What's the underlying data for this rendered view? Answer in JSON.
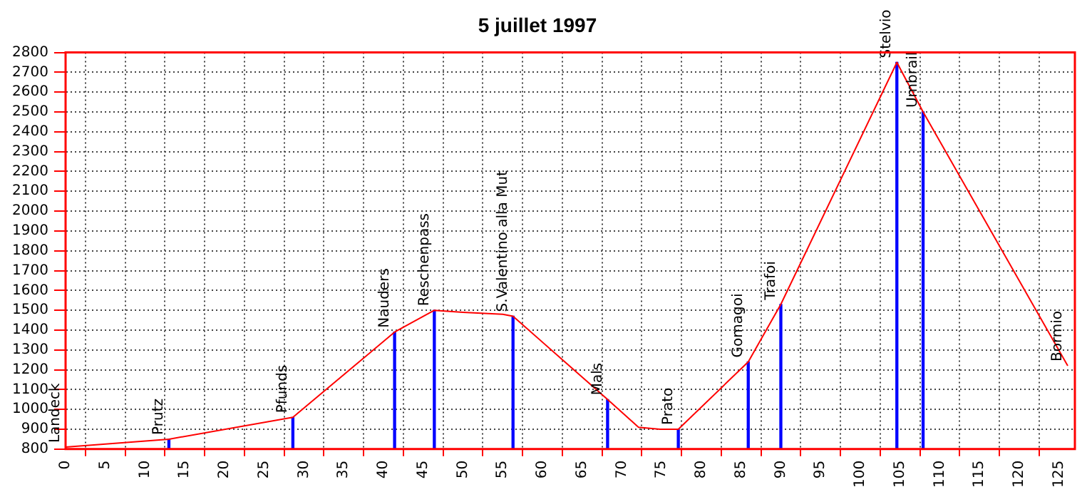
{
  "chart_data": {
    "type": "line",
    "title": "5 juillet 1997",
    "series": [
      {
        "color": "#ff0000",
        "x": [
          0,
          13,
          28.6,
          41.4,
          46.4,
          50,
          55,
          56.3,
          68.2,
          72.1,
          74.8,
          77.1,
          85.9,
          90,
          104.6,
          107.9,
          126.1
        ],
        "values": [
          810,
          850,
          960,
          1390,
          1500,
          1490,
          1480,
          1470,
          1050,
          910,
          900,
          900,
          1240,
          1530,
          2750,
          2500,
          1220
        ]
      },
      {
        "type": "bar",
        "color": "#0000ff",
        "x": [
          13,
          28.6,
          41.4,
          46.4,
          56.3,
          68.2,
          77.1,
          85.9,
          90,
          104.6,
          107.9
        ],
        "values": [
          850,
          960,
          1390,
          1500,
          1470,
          1050,
          900,
          1240,
          1530,
          2750,
          2500
        ]
      }
    ],
    "annotations": [
      {
        "text": "Landeck",
        "x": 0,
        "y": 810
      },
      {
        "text": "Prutz",
        "x": 13,
        "y": 850
      },
      {
        "text": "Pfunds",
        "x": 28.6,
        "y": 960
      },
      {
        "text": "Nauders",
        "x": 41.4,
        "y": 1390
      },
      {
        "text": "Reschenpass",
        "x": 46.4,
        "y": 1500
      },
      {
        "text": "S.Valentino alla Mut",
        "x": 56.3,
        "y": 1470
      },
      {
        "text": "Mals",
        "x": 68.2,
        "y": 1050
      },
      {
        "text": "Prato",
        "x": 77.1,
        "y": 900
      },
      {
        "text": "Gomagoi",
        "x": 85.9,
        "y": 1240
      },
      {
        "text": "Trafoi",
        "x": 90,
        "y": 1530
      },
      {
        "text": "Stelvio",
        "x": 104.6,
        "y": 2750
      },
      {
        "text": "Umbrail",
        "x": 107.9,
        "y": 2500
      },
      {
        "text": "Bormio",
        "x": 126.1,
        "y": 1220
      }
    ],
    "xlim": [
      0,
      127
    ],
    "xticks": [
      0,
      5,
      10,
      15,
      20,
      25,
      30,
      35,
      40,
      45,
      50,
      55,
      60,
      65,
      70,
      75,
      80,
      85,
      90,
      95,
      100,
      105,
      110,
      115,
      120,
      125
    ],
    "ylim": [
      800,
      2800
    ],
    "yticks": [
      800,
      900,
      1000,
      1100,
      1200,
      1300,
      1400,
      1500,
      1600,
      1700,
      1800,
      1900,
      2000,
      2100,
      2200,
      2300,
      2400,
      2500,
      2600,
      2700,
      2800
    ],
    "grid": true,
    "legend": false,
    "marker": "none",
    "line_style": "solid"
  }
}
